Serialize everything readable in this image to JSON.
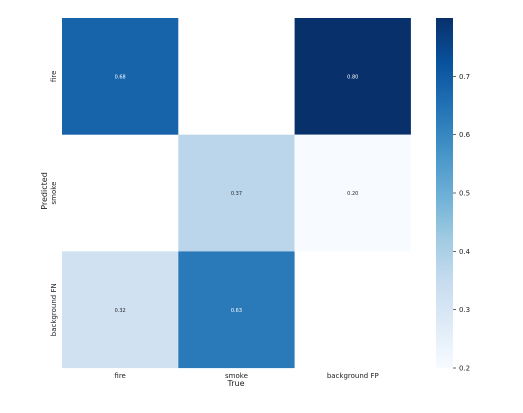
{
  "chart_data": {
    "type": "heatmap",
    "title": "",
    "xlabel": "True",
    "ylabel": "Predicted",
    "x_categories": [
      "fire",
      "smoke",
      "background FP"
    ],
    "y_categories": [
      "fire",
      "smoke",
      "background FN"
    ],
    "values": [
      [
        0.68,
        null,
        0.8
      ],
      [
        null,
        0.37,
        0.2
      ],
      [
        0.32,
        0.63,
        null
      ]
    ],
    "cell_labels": [
      [
        "0.68",
        "",
        "0.80"
      ],
      [
        "",
        "0.37",
        "0.20"
      ],
      [
        "0.32",
        "0.63",
        ""
      ]
    ],
    "colorbar": {
      "min": 0.2,
      "max": 0.8,
      "ticks": [
        0.2,
        0.3,
        0.4,
        0.5,
        0.6,
        0.7
      ],
      "tick_labels": [
        "0.2",
        "0.3",
        "0.4",
        "0.5",
        "0.6",
        "0.7"
      ],
      "colormap": "Blues",
      "stops": [
        "#f7fbff",
        "#deebf7",
        "#c6dbef",
        "#9ecae1",
        "#6baed6",
        "#4292c6",
        "#2171b5",
        "#08519c",
        "#08306b"
      ]
    },
    "grid": false
  }
}
